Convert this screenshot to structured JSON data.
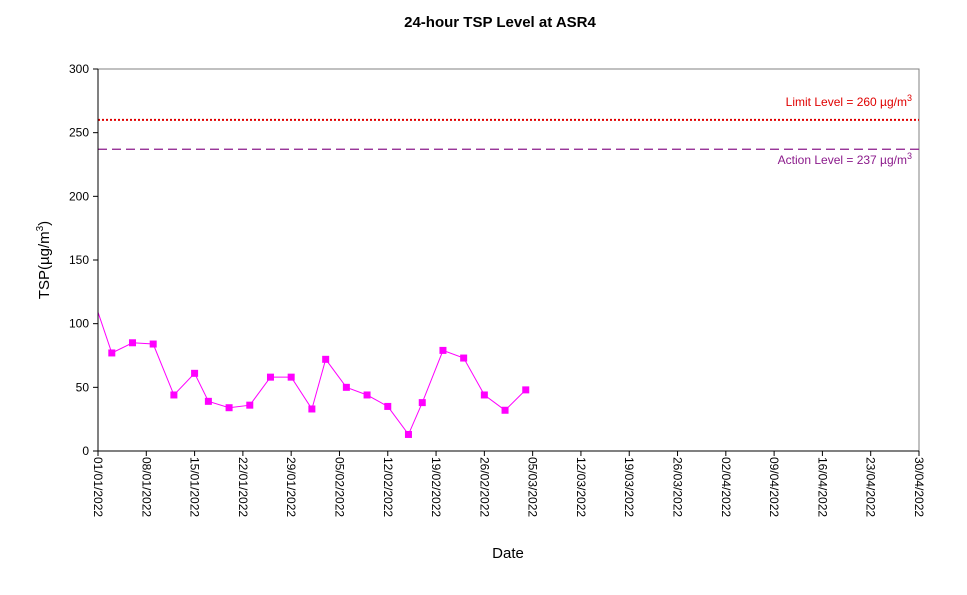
{
  "chart_data": {
    "type": "line",
    "title": "24-hour TSP Level at ASR4",
    "xlabel": "Date",
    "ylabel_main": "TSP(",
    "ylabel_unit_base": "µg/m",
    "ylabel_unit_sup": "3",
    "ylabel_close": ")",
    "ylim": [
      0,
      300
    ],
    "yticks": [
      0,
      50,
      100,
      150,
      200,
      250,
      300
    ],
    "xlim": [
      "2022-01-01",
      "2022-04-30"
    ],
    "xticks": [
      "01/01/2022",
      "08/01/2022",
      "15/01/2022",
      "22/01/2022",
      "29/01/2022",
      "05/02/2022",
      "12/02/2022",
      "19/02/2022",
      "26/02/2022",
      "05/03/2022",
      "12/03/2022",
      "19/03/2022",
      "26/03/2022",
      "02/04/2022",
      "09/04/2022",
      "16/04/2022",
      "23/04/2022",
      "30/04/2022"
    ],
    "grid": false,
    "reference_lines": [
      {
        "name": "limit",
        "label": "Limit Level  = 260 µg/m",
        "sup": "3",
        "value": 260,
        "color": "#e00000",
        "style": "dotted"
      },
      {
        "name": "action",
        "label": "Action Level  = 237 µg/m",
        "sup": "3",
        "value": 237,
        "color": "#8b1a8b",
        "style": "dashed"
      }
    ],
    "series": [
      {
        "color": "#ff00ff",
        "marker": "square",
        "points": [
          {
            "x": "2022-01-01",
            "y": 109
          },
          {
            "x": "2022-01-03",
            "y": 77
          },
          {
            "x": "2022-01-06",
            "y": 85
          },
          {
            "x": "2022-01-09",
            "y": 84
          },
          {
            "x": "2022-01-12",
            "y": 44
          },
          {
            "x": "2022-01-15",
            "y": 61
          },
          {
            "x": "2022-01-17",
            "y": 39
          },
          {
            "x": "2022-01-20",
            "y": 34
          },
          {
            "x": "2022-01-23",
            "y": 36
          },
          {
            "x": "2022-01-26",
            "y": 58
          },
          {
            "x": "2022-01-29",
            "y": 58
          },
          {
            "x": "2022-02-01",
            "y": 33
          },
          {
            "x": "2022-02-03",
            "y": 72
          },
          {
            "x": "2022-02-06",
            "y": 50
          },
          {
            "x": "2022-02-09",
            "y": 44
          },
          {
            "x": "2022-02-12",
            "y": 35
          },
          {
            "x": "2022-02-15",
            "y": 13
          },
          {
            "x": "2022-02-17",
            "y": 38
          },
          {
            "x": "2022-02-20",
            "y": 79
          },
          {
            "x": "2022-02-23",
            "y": 73
          },
          {
            "x": "2022-02-26",
            "y": 44
          },
          {
            "x": "2022-03-01",
            "y": 32
          },
          {
            "x": "2022-03-04",
            "y": 48
          }
        ]
      }
    ]
  }
}
